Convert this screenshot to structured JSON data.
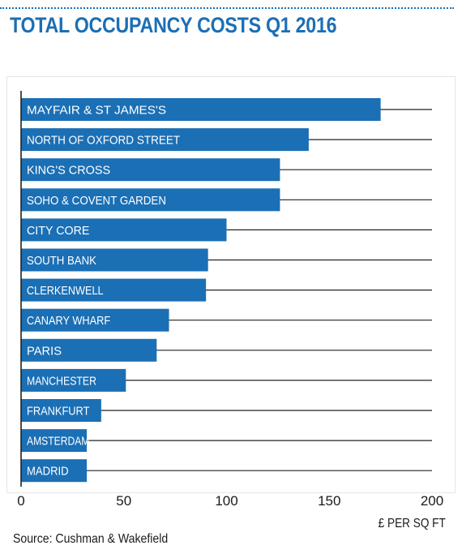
{
  "title": "TOTAL OCCUPANCY COSTS Q1 2016",
  "source": "Source: Cushman & Wakefield",
  "colors": {
    "bar": "#1b6fb5",
    "title": "#1b6fb5",
    "bar_text": "#ffffff",
    "line": "#222222"
  },
  "chart_data": {
    "type": "bar",
    "orientation": "horizontal",
    "categories": [
      "MAYFAIR & ST JAMES'S",
      "NORTH OF OXFORD STREET",
      "KING'S CROSS",
      "SOHO & COVENT GARDEN",
      "CITY CORE",
      "SOUTH BANK",
      "CLERKENWELL",
      "CANARY WHARF",
      "PARIS",
      "MANCHESTER",
      "FRANKFURT",
      "AMSTERDAM",
      "MADRID"
    ],
    "values": [
      175,
      140,
      126,
      126,
      100,
      91,
      90,
      72,
      66,
      51,
      39,
      32,
      32
    ],
    "xlabel": "£ PER SQ FT",
    "ylabel": "",
    "xlim": [
      0,
      200
    ],
    "xticks": [
      "0",
      "50",
      "100",
      "150",
      "200"
    ],
    "grid": "horizontal reference line per bar",
    "legend": "none"
  }
}
